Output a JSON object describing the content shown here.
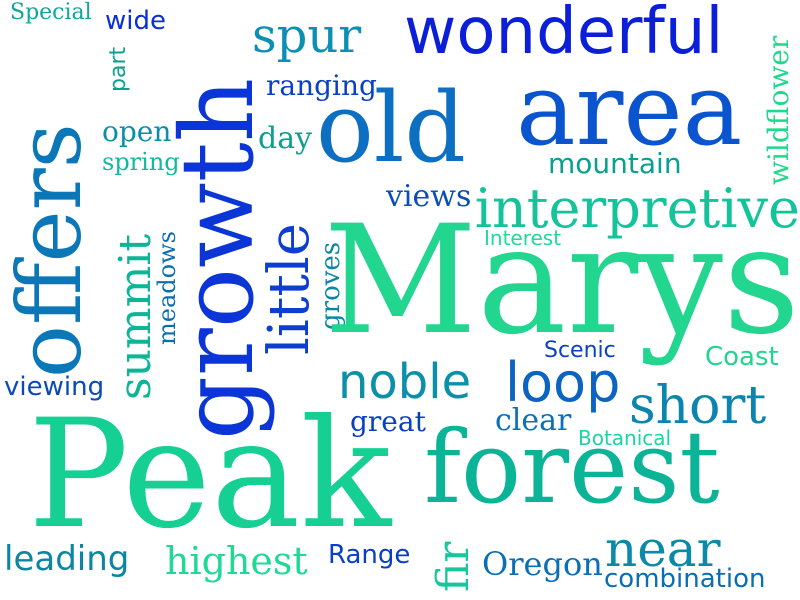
{
  "words": [
    {
      "text": "Special",
      "color": "#0ea89a"
    },
    {
      "text": "wide",
      "color": "#0b2fd3"
    },
    {
      "text": "part",
      "color": "#0aa08f"
    },
    {
      "text": "growth",
      "color": "#0b35d6"
    },
    {
      "text": "spur",
      "color": "#0c8fb5"
    },
    {
      "text": "wonderful",
      "color": "#0b1fd8"
    },
    {
      "text": "wildflower",
      "color": "#1fd98a"
    },
    {
      "text": "ranging",
      "color": "#0a3fc9"
    },
    {
      "text": "old",
      "color": "#0c6fc2"
    },
    {
      "text": "area",
      "color": "#0a55cf"
    },
    {
      "text": "open",
      "color": "#0b8fa8"
    },
    {
      "text": "day",
      "color": "#0ea08e"
    },
    {
      "text": "spring",
      "color": "#12b8a0"
    },
    {
      "text": "mountain",
      "color": "#0aa08f"
    },
    {
      "text": "offers",
      "color": "#0a77b8"
    },
    {
      "text": "views",
      "color": "#0a4fb8"
    },
    {
      "text": "interpretive",
      "color": "#13c49a"
    },
    {
      "text": "summit",
      "color": "#0cb597"
    },
    {
      "text": "meadows",
      "color": "#0a6fb0"
    },
    {
      "text": "little",
      "color": "#0c3fcf"
    },
    {
      "text": "groves",
      "color": "#0a85a8"
    },
    {
      "text": "Interest",
      "color": "#22d99a"
    },
    {
      "text": "Marys",
      "color": "#22d68f"
    },
    {
      "text": "Scenic",
      "color": "#0a3fc9"
    },
    {
      "text": "Coast",
      "color": "#22d690"
    },
    {
      "text": "noble",
      "color": "#0a90a8"
    },
    {
      "text": "loop",
      "color": "#0b63c2"
    },
    {
      "text": "viewing",
      "color": "#0a4ab5"
    },
    {
      "text": "short",
      "color": "#0b85b0"
    },
    {
      "text": "great",
      "color": "#0a3fc3"
    },
    {
      "text": "clear",
      "color": "#0b70b8"
    },
    {
      "text": "Botanical",
      "color": "#1ad6a0"
    },
    {
      "text": "Peak",
      "color": "#15cf93"
    },
    {
      "text": "forest",
      "color": "#0cb497"
    },
    {
      "text": "near",
      "color": "#0a8aa8"
    },
    {
      "text": "leading",
      "color": "#0a86a3"
    },
    {
      "text": "highest",
      "color": "#1fd995"
    },
    {
      "text": "Range",
      "color": "#0a3fc3"
    },
    {
      "text": "fir",
      "color": "#15c79a"
    },
    {
      "text": "Oregon",
      "color": "#0a6fb5"
    },
    {
      "text": "combination",
      "color": "#0a6fb0"
    }
  ]
}
